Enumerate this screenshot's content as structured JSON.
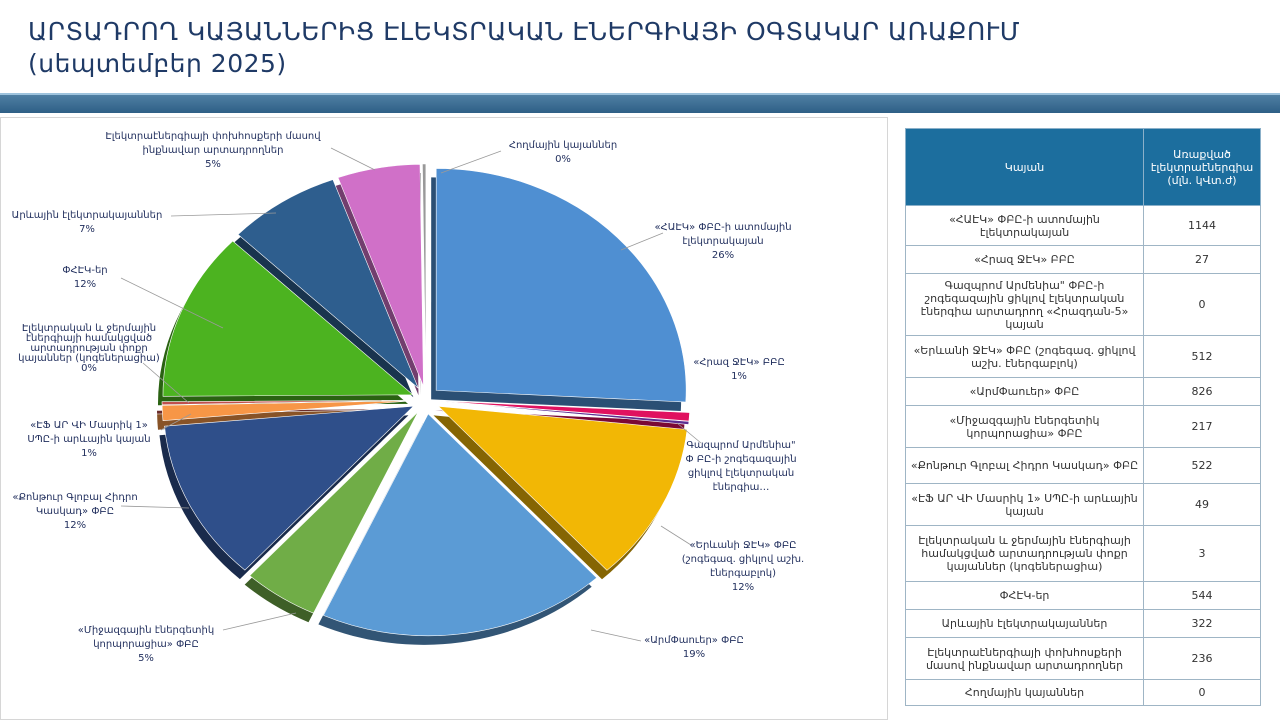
{
  "title": {
    "line1": "ԱՐՏԱԴՐՈՂ ԿԱՅԱՆՆԵՐԻՑ ԷԼԵԿՏՐԱԿԱՆ ԷՆԵՐԳԻԱՅԻ ՕԳՏԱԿԱՐ ԱՌԱՔՈՒՄ",
    "line2": "(սեպտեմբեր 2025)"
  },
  "table": {
    "headers": [
      "Կայան",
      "Առաքված էլեկտրաէներգիա (մլն. կՎտ.ժ)"
    ],
    "rows": [
      {
        "name": "«ՀԱԷԿ» ՓԲԸ-ի ատոմային էլեկտրակայան",
        "value": "1144"
      },
      {
        "name": "«Հրազ ՋԷԿ» ԲԲԸ",
        "value": "27"
      },
      {
        "name": "Գազպրոմ Արմենիա\" ՓԲԸ-ի շոգեգազային ցիկլով էլեկտրական էներգիա արտադրող «Հրազդան-5» կայան",
        "value": "0"
      },
      {
        "name": "«Երևանի ՋԷԿ» ՓԲԸ (շոգեգազ. ցիկլով աշխ. էներգաբլոկ)",
        "value": "512"
      },
      {
        "name": "«ԱրմՓաուեր» ՓԲԸ",
        "value": "826"
      },
      {
        "name": "«Միջազգային էներգետիկ կորպորացիա» ՓԲԸ",
        "value": "217"
      },
      {
        "name": "«Քոնթուր Գլոբալ Հիդրո Կասկադ» ՓԲԸ",
        "value": "522"
      },
      {
        "name": "«ԷՖ ԱՐ ՎԻ Մասրիկ 1» ՍՊԸ-ի արևային կայան",
        "value": "49"
      },
      {
        "name": "Էլեկտրական և ջերմային էներգիայի համակցված արտադրության փոքր կայաններ (կոգեներացիա)",
        "value": "3"
      },
      {
        "name": "ՓՀԷԿ-եր",
        "value": "544"
      },
      {
        "name": "Արևային էլեկտրակայաններ",
        "value": "322"
      },
      {
        "name": "Էլեկտրաէներգիայի փոխհոսքերի մասով ինքնավար արտադրողներ",
        "value": "236"
      },
      {
        "name": "Հողմային կայաններ",
        "value": "0"
      }
    ]
  },
  "chart_data": {
    "type": "pie",
    "title": "",
    "slices": [
      {
        "label": "«ՀԱԷԿ» ՓԲԸ-ի ատոմային էլեկտրակայան",
        "value": 1144,
        "pct_label": "26%",
        "color": "#4f8fd2"
      },
      {
        "label": "«Հրազ ՋԷԿ» ԲԲԸ",
        "value": 27,
        "pct_label": "1%",
        "color": "#e0115f"
      },
      {
        "label": "Գազպրոմ Արմենիա\" ՓԲԸ-ի շոգեգազային ցիկլով էլեկտրական էներգիա…",
        "value": 0,
        "pct_label": "",
        "color": "#5c2d91"
      },
      {
        "label": "«Երևանի ՋԷԿ» ՓԲԸ (շոգեգազ. ցիկլով աշխ. էներգաբլոկ)",
        "value": 512,
        "pct_label": "12%",
        "color": "#f2b705"
      },
      {
        "label": "«ԱրմՓաուեր» ՓԲԸ",
        "value": 826,
        "pct_label": "19%",
        "color": "#5b9bd5"
      },
      {
        "label": "«Միջազգային էներգետիկ կորպորացիա» ՓԲԸ",
        "value": 217,
        "pct_label": "5%",
        "color": "#70ad47"
      },
      {
        "label": "«Քոնթուր Գլոբալ Հիդրո Կասկադ» ՓԲԸ",
        "value": 522,
        "pct_label": "12%",
        "color": "#2f4f8a"
      },
      {
        "label": "«ԷՖ ԱՐ ՎԻ Մասրիկ 1» ՍՊԸ-ի արևային կայան",
        "value": 49,
        "pct_label": "1%",
        "color": "#f79646"
      },
      {
        "label": "Էլեկտրական և ջերմային էներգիայի համակցված արտադրության փոքր կայաններ (կոգեներացիա)",
        "value": 3,
        "pct_label": "0%",
        "color": "#c0504d"
      },
      {
        "label": "ՓՀԷԿ-եր",
        "value": 544,
        "pct_label": "12%",
        "color": "#4cb320"
      },
      {
        "label": "Արևային էլեկտրակայաններ",
        "value": 322,
        "pct_label": "7%",
        "color": "#2e5e8e"
      },
      {
        "label": "Էլեկտրաէներգիայի փոխհոսքերի մասով ինքնավար արտադրողներ",
        "value": 236,
        "pct_label": "5%",
        "color": "#d070c8"
      },
      {
        "label": "Հողմային կայաններ",
        "value": 0,
        "pct_label": "0%",
        "color": "#999999"
      }
    ]
  }
}
